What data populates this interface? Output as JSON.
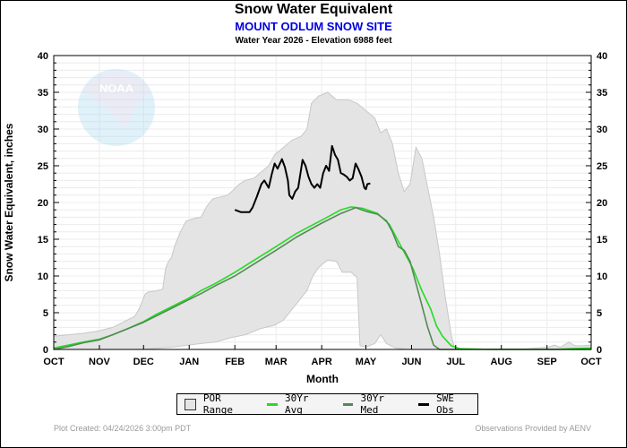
{
  "header": {
    "title": "Snow Water Equivalent",
    "site": "MOUNT ODLUM SNOW SITE",
    "subtitle": "Water Year 2026 -  Elevation 6988 feet"
  },
  "watermark": "NOAA",
  "legend": [
    {
      "label": "POR Range",
      "kind": "box",
      "color": "#e4e4e4"
    },
    {
      "label": "30Yr Avg",
      "kind": "line",
      "color": "#22dd22"
    },
    {
      "label": "30Yr Med",
      "kind": "line",
      "color": "#558855"
    },
    {
      "label": "SWE Obs",
      "kind": "line",
      "color": "#000000"
    }
  ],
  "footer": {
    "created": "Plot Created: 04/24/2026 3:00pm PDT",
    "provider": "Observations Provided by AENV"
  },
  "chart_data": {
    "type": "area",
    "title": "Snow Water Equivalent",
    "xlabel": "Month",
    "ylabel": "Snow Water Equivalent, inches",
    "x_units": "day of water year (0 = Oct 1)",
    "xlim": [
      0,
      365
    ],
    "ylim": [
      0,
      40
    ],
    "y_ticks": [
      0,
      5,
      10,
      15,
      20,
      25,
      30,
      35,
      40
    ],
    "x_ticks": [
      {
        "label": "OCT",
        "day": 0
      },
      {
        "label": "NOV",
        "day": 31
      },
      {
        "label": "DEC",
        "day": 61
      },
      {
        "label": "JAN",
        "day": 92
      },
      {
        "label": "FEB",
        "day": 123
      },
      {
        "label": "MAR",
        "day": 151
      },
      {
        "label": "APR",
        "day": 182
      },
      {
        "label": "MAY",
        "day": 212
      },
      {
        "label": "JUN",
        "day": 243
      },
      {
        "label": "JUL",
        "day": 273
      },
      {
        "label": "AUG",
        "day": 304
      },
      {
        "label": "SEP",
        "day": 335
      },
      {
        "label": "OCT",
        "day": 365
      }
    ],
    "grid": true,
    "legend_position": "bottom",
    "por_range": {
      "name": "POR Range",
      "upper": [
        [
          0,
          1.8
        ],
        [
          10,
          2.0
        ],
        [
          20,
          2.2
        ],
        [
          30,
          2.5
        ],
        [
          40,
          3.0
        ],
        [
          50,
          4.0
        ],
        [
          55,
          4.5
        ],
        [
          58,
          5.5
        ],
        [
          62,
          7.5
        ],
        [
          64,
          7.8
        ],
        [
          70,
          8.0
        ],
        [
          74,
          8.2
        ],
        [
          76,
          11.0
        ],
        [
          78,
          12.0
        ],
        [
          80,
          12.5
        ],
        [
          82,
          14.0
        ],
        [
          86,
          16.0
        ],
        [
          90,
          17.5
        ],
        [
          95,
          17.8
        ],
        [
          100,
          18.0
        ],
        [
          104,
          19.5
        ],
        [
          108,
          20.5
        ],
        [
          112,
          20.7
        ],
        [
          118,
          21.0
        ],
        [
          122,
          21.7
        ],
        [
          126,
          22.5
        ],
        [
          130,
          23.0
        ],
        [
          136,
          23.3
        ],
        [
          140,
          24.0
        ],
        [
          146,
          25.0
        ],
        [
          150,
          26.5
        ],
        [
          156,
          27.5
        ],
        [
          162,
          28.5
        ],
        [
          168,
          29.0
        ],
        [
          172,
          30.0
        ],
        [
          175,
          33.5
        ],
        [
          180,
          34.5
        ],
        [
          186,
          35.0
        ],
        [
          192,
          34.0
        ],
        [
          200,
          34.0
        ],
        [
          206,
          33.5
        ],
        [
          212,
          32.5
        ],
        [
          218,
          31.5
        ],
        [
          222,
          29.5
        ],
        [
          226,
          30.0
        ],
        [
          230,
          28.0
        ],
        [
          234,
          24.0
        ],
        [
          238,
          21.5
        ],
        [
          242,
          22.5
        ],
        [
          246,
          27.5
        ],
        [
          250,
          26.0
        ],
        [
          254,
          22.0
        ],
        [
          258,
          18.0
        ],
        [
          262,
          13.0
        ],
        [
          266,
          7.0
        ],
        [
          270,
          2.0
        ],
        [
          272,
          0.3
        ],
        [
          278,
          0
        ],
        [
          300,
          0.1
        ],
        [
          320,
          0.1
        ],
        [
          336,
          0.3
        ],
        [
          340,
          0.6
        ],
        [
          344,
          0.3
        ],
        [
          350,
          1.0
        ],
        [
          354,
          0.5
        ],
        [
          358,
          0.5
        ],
        [
          365,
          0.6
        ]
      ],
      "lower": [
        [
          0,
          0
        ],
        [
          30,
          0
        ],
        [
          60,
          0
        ],
        [
          80,
          0.3
        ],
        [
          100,
          0.8
        ],
        [
          110,
          1.0
        ],
        [
          120,
          1.6
        ],
        [
          130,
          2.0
        ],
        [
          140,
          2.8
        ],
        [
          150,
          3.3
        ],
        [
          156,
          4.0
        ],
        [
          162,
          5.5
        ],
        [
          168,
          7.0
        ],
        [
          172,
          8.0
        ],
        [
          176,
          10.0
        ],
        [
          180,
          11.2
        ],
        [
          186,
          12.2
        ],
        [
          192,
          12.0
        ],
        [
          196,
          10.5
        ],
        [
          202,
          10.5
        ],
        [
          206,
          9.8
        ],
        [
          208,
          0.5
        ],
        [
          212,
          0.3
        ],
        [
          218,
          0.8
        ],
        [
          222,
          2.0
        ],
        [
          226,
          0.8
        ],
        [
          232,
          0.2
        ],
        [
          240,
          0
        ],
        [
          365,
          0
        ]
      ]
    },
    "series": [
      {
        "name": "30Yr Avg",
        "color": "#22dd22",
        "points": [
          [
            0,
            0.2
          ],
          [
            10,
            0.6
          ],
          [
            20,
            1.0
          ],
          [
            31,
            1.4
          ],
          [
            40,
            2.0
          ],
          [
            50,
            2.8
          ],
          [
            61,
            3.8
          ],
          [
            70,
            4.8
          ],
          [
            80,
            5.8
          ],
          [
            92,
            7.0
          ],
          [
            100,
            8.0
          ],
          [
            110,
            9.0
          ],
          [
            123,
            10.5
          ],
          [
            135,
            12.0
          ],
          [
            151,
            14.0
          ],
          [
            165,
            15.8
          ],
          [
            182,
            17.6
          ],
          [
            195,
            19.0
          ],
          [
            202,
            19.4
          ],
          [
            210,
            19.2
          ],
          [
            220,
            18.5
          ],
          [
            228,
            17.0
          ],
          [
            236,
            14.0
          ],
          [
            244,
            11.0
          ],
          [
            250,
            8.0
          ],
          [
            256,
            5.5
          ],
          [
            260,
            3.2
          ],
          [
            264,
            1.8
          ],
          [
            270,
            0.5
          ],
          [
            276,
            0.1
          ],
          [
            300,
            0
          ],
          [
            340,
            0
          ],
          [
            350,
            0.1
          ],
          [
            365,
            0.2
          ]
        ]
      },
      {
        "name": "30Yr Med",
        "color": "#558855",
        "points": [
          [
            0,
            0
          ],
          [
            10,
            0.4
          ],
          [
            20,
            0.9
          ],
          [
            31,
            1.3
          ],
          [
            40,
            2.0
          ],
          [
            50,
            2.8
          ],
          [
            61,
            3.7
          ],
          [
            70,
            4.6
          ],
          [
            80,
            5.6
          ],
          [
            92,
            6.8
          ],
          [
            100,
            7.6
          ],
          [
            110,
            8.7
          ],
          [
            123,
            10.0
          ],
          [
            135,
            11.5
          ],
          [
            151,
            13.5
          ],
          [
            165,
            15.3
          ],
          [
            182,
            17.2
          ],
          [
            195,
            18.5
          ],
          [
            205,
            19.3
          ],
          [
            212,
            18.8
          ],
          [
            220,
            18.4
          ],
          [
            226,
            17.5
          ],
          [
            230,
            16.0
          ],
          [
            234,
            14.0
          ],
          [
            238,
            13.5
          ],
          [
            242,
            12.0
          ],
          [
            246,
            9.0
          ],
          [
            250,
            6.0
          ],
          [
            254,
            3.0
          ],
          [
            258,
            0.6
          ],
          [
            262,
            0
          ],
          [
            365,
            0
          ]
        ]
      },
      {
        "name": "SWE Obs",
        "color": "#000000",
        "points": [
          [
            123,
            19.0
          ],
          [
            127,
            18.7
          ],
          [
            133,
            18.7
          ],
          [
            135,
            19.3
          ],
          [
            138,
            20.8
          ],
          [
            141,
            22.5
          ],
          [
            143,
            23.0
          ],
          [
            146,
            22.0
          ],
          [
            148,
            23.8
          ],
          [
            150,
            25.3
          ],
          [
            152,
            24.6
          ],
          [
            155,
            25.9
          ],
          [
            157,
            24.8
          ],
          [
            159,
            23.0
          ],
          [
            160,
            21.0
          ],
          [
            162,
            20.5
          ],
          [
            164,
            21.5
          ],
          [
            166,
            22.0
          ],
          [
            169,
            25.8
          ],
          [
            171,
            25.0
          ],
          [
            173,
            23.5
          ],
          [
            175,
            22.5
          ],
          [
            177,
            22.0
          ],
          [
            179,
            22.5
          ],
          [
            181,
            22.0
          ],
          [
            183,
            24.0
          ],
          [
            185,
            25.0
          ],
          [
            187,
            24.3
          ],
          [
            189,
            27.7
          ],
          [
            191,
            26.5
          ],
          [
            193,
            25.8
          ],
          [
            195,
            24.0
          ],
          [
            197,
            23.8
          ],
          [
            199,
            23.5
          ],
          [
            201,
            23.0
          ],
          [
            203,
            23.3
          ],
          [
            205,
            25.3
          ],
          [
            207,
            24.5
          ],
          [
            209,
            23.5
          ],
          [
            211,
            22.0
          ],
          [
            212,
            21.8
          ],
          [
            213,
            22.5
          ],
          [
            215,
            22.6
          ]
        ]
      }
    ]
  }
}
